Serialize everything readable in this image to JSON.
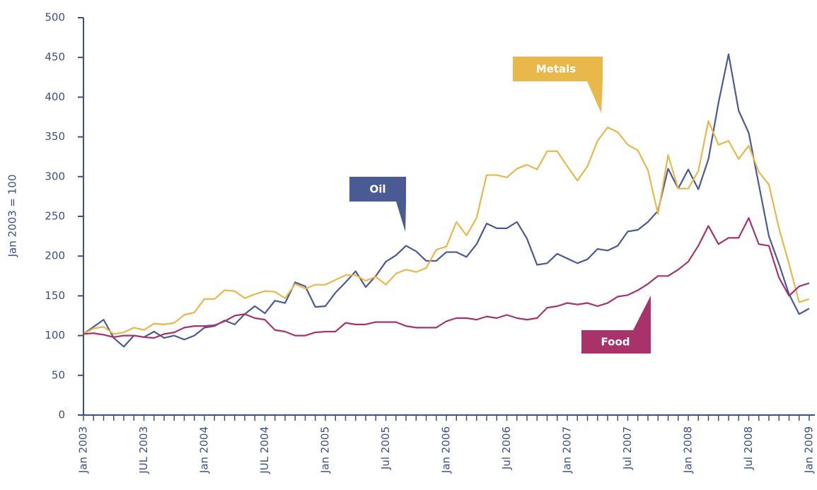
{
  "chart_data": {
    "type": "line",
    "y_label": "Jan 2003 = 100",
    "categories": [
      "Jan 2003",
      null,
      null,
      null,
      null,
      null,
      "JUL 2003",
      null,
      null,
      null,
      null,
      null,
      "Jan 2004",
      null,
      null,
      null,
      null,
      null,
      "JUL 2004",
      null,
      null,
      null,
      null,
      null,
      "Jan 2005",
      null,
      null,
      null,
      null,
      null,
      "Jul 2005",
      null,
      null,
      null,
      null,
      null,
      "Jan 2006",
      null,
      null,
      null,
      null,
      null,
      "Jul 2006",
      null,
      null,
      null,
      null,
      null,
      "Jan 2007",
      null,
      null,
      null,
      null,
      null,
      "Jul 2007",
      null,
      null,
      null,
      null,
      null,
      "Jan 2008",
      null,
      null,
      null,
      null,
      null,
      "Jul 2008",
      null,
      null,
      null,
      null,
      null,
      "Jan 2009"
    ],
    "series": [
      {
        "name": "Oil",
        "color": "#4a5a95",
        "values": [
          102,
          111,
          120,
          97,
          86,
          100,
          98,
          105,
          97,
          100,
          95,
          100,
          110,
          112,
          119,
          114,
          127,
          137,
          128,
          144,
          141,
          167,
          162,
          136,
          137,
          154,
          167,
          181,
          161,
          175,
          193,
          201,
          213,
          206,
          194,
          194,
          205,
          205,
          199,
          215,
          241,
          235,
          235,
          243,
          222,
          189,
          191,
          203,
          197,
          191,
          196,
          209,
          207,
          213,
          231,
          233,
          243,
          257,
          310,
          285,
          309,
          284,
          322,
          393,
          454,
          383,
          355,
          290,
          225,
          190,
          152,
          127,
          134
        ]
      },
      {
        "name": "Metals",
        "color": "#e8b84a",
        "values": [
          102,
          109,
          111,
          102,
          104,
          110,
          107,
          115,
          114,
          116,
          126,
          129,
          146,
          146,
          157,
          156,
          147,
          152,
          156,
          155,
          147,
          165,
          159,
          164,
          164,
          170,
          176,
          176,
          169,
          174,
          164,
          178,
          183,
          180,
          185,
          208,
          212,
          243,
          226,
          248,
          302,
          302,
          299,
          310,
          315,
          309,
          332,
          332,
          313,
          295,
          313,
          345,
          362,
          356,
          340,
          333,
          308,
          253,
          327,
          285,
          285,
          307,
          370,
          340,
          345,
          322,
          339,
          306,
          290,
          235,
          190,
          142,
          146
        ]
      },
      {
        "name": "Food",
        "color": "#a8336a",
        "values": [
          102,
          103,
          101,
          98,
          100,
          100,
          98,
          97,
          102,
          104,
          110,
          112,
          112,
          113,
          118,
          125,
          127,
          122,
          120,
          107,
          105,
          100,
          100,
          104,
          105,
          105,
          116,
          114,
          114,
          117,
          117,
          117,
          112,
          110,
          110,
          110,
          118,
          122,
          122,
          120,
          124,
          122,
          126,
          122,
          120,
          122,
          135,
          137,
          141,
          139,
          141,
          137,
          141,
          149,
          151,
          157,
          165,
          175,
          175,
          183,
          193,
          213,
          238,
          215,
          223,
          223,
          248,
          215,
          213,
          173,
          150,
          162,
          166
        ]
      }
    ],
    "ylim": [
      0,
      500
    ],
    "yticks": [
      0,
      50,
      100,
      150,
      200,
      250,
      300,
      350,
      400,
      450,
      500
    ]
  }
}
